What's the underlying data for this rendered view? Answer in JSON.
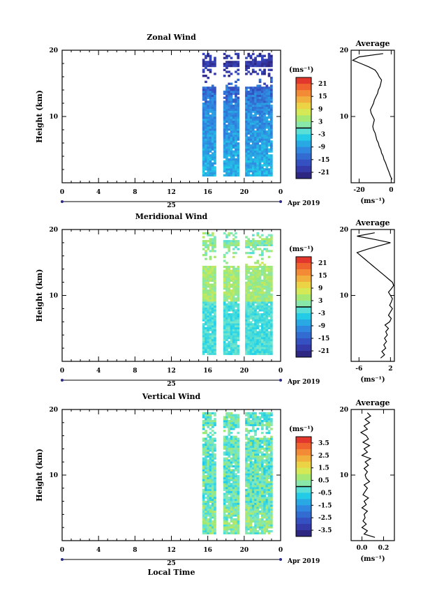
{
  "chart_data": [
    {
      "type": "heatmap",
      "title": "Zonal Wind",
      "ylabel": "Height (km)",
      "ylim": [
        0,
        20
      ],
      "yticks": [
        "10",
        "20"
      ],
      "xlim": [
        0,
        24
      ],
      "xticks": [
        "0",
        "4",
        "8",
        "12",
        "16",
        "20",
        "0"
      ],
      "date_label": "25",
      "month_label": "Apr 2019",
      "xlabel": "",
      "colorbar": {
        "unit": "(ms⁻¹)",
        "ticks": [
          "21",
          "15",
          "9",
          "3",
          "-3",
          "-9",
          "-15",
          "-21"
        ],
        "min": -24,
        "max": 24
      },
      "profile": {
        "title": "Average",
        "xticks": [
          "-20",
          "0"
        ],
        "xlabel": "(ms⁻¹)",
        "xlim": [
          -25,
          2
        ],
        "yticks": [
          "10",
          "20"
        ],
        "height_km": [
          0.5,
          1.0,
          1.5,
          2.0,
          2.5,
          3.0,
          3.5,
          4.0,
          4.5,
          5.0,
          5.5,
          6.0,
          6.5,
          7.0,
          7.5,
          8.0,
          8.5,
          9.0,
          9.5,
          10.0,
          10.5,
          11.0,
          11.5,
          12.0,
          12.5,
          13.0,
          13.5,
          14.0,
          14.5,
          15.0,
          15.5,
          16.0,
          16.5,
          17.0,
          17.5,
          18.0,
          18.5,
          19.0,
          19.5
        ],
        "value": [
          0.5,
          -0.5,
          -1.2,
          -2.0,
          -2.8,
          -3.5,
          -4.5,
          -5.0,
          -6.0,
          -6.5,
          -7.5,
          -8.0,
          -9.0,
          -9.5,
          -10.0,
          -11.0,
          -11.5,
          -11.0,
          -10.5,
          -11.5,
          -12.5,
          -13.0,
          -12.0,
          -11.0,
          -10.5,
          -9.5,
          -8.5,
          -8.0,
          -7.0,
          -6.5,
          -6.0,
          -7.5,
          -8.5,
          -10.0,
          -14.0,
          -19.0,
          -24.0,
          -20.0,
          -5.0
        ]
      }
    },
    {
      "type": "heatmap",
      "title": "Meridional Wind",
      "ylabel": "Height (km)",
      "ylim": [
        0,
        20
      ],
      "yticks": [
        "10",
        "20"
      ],
      "xlim": [
        0,
        24
      ],
      "xticks": [
        "0",
        "4",
        "8",
        "12",
        "16",
        "20",
        "0"
      ],
      "date_label": "25",
      "month_label": "Apr 2019",
      "xlabel": "",
      "colorbar": {
        "unit": "(ms⁻¹)",
        "ticks": [
          "21",
          "15",
          "9",
          "3",
          "-3",
          "-9",
          "-15",
          "-21"
        ],
        "min": -24,
        "max": 24
      },
      "profile": {
        "title": "Average",
        "xticks": [
          "-6",
          "2"
        ],
        "xlabel": "(ms⁻¹)",
        "xlim": [
          -8,
          3
        ],
        "yticks": [
          "10",
          "20"
        ],
        "height_km": [
          0.5,
          1.0,
          1.5,
          2.0,
          2.5,
          3.0,
          3.5,
          4.0,
          4.5,
          5.0,
          5.5,
          6.0,
          6.5,
          7.0,
          7.5,
          8.0,
          8.5,
          9.0,
          9.5,
          10.0,
          10.5,
          11.0,
          11.5,
          12.0,
          12.5,
          13.0,
          13.5,
          14.0,
          14.5,
          15.0,
          15.5,
          16.0,
          16.5,
          17.0,
          17.5,
          18.0,
          18.5,
          19.0,
          19.5
        ],
        "value": [
          -0.5,
          0.5,
          -0.2,
          0.8,
          0.3,
          1.0,
          0.5,
          1.2,
          0.8,
          1.5,
          0.6,
          1.8,
          2.2,
          1.5,
          2.0,
          2.5,
          1.8,
          2.2,
          2.5,
          2.0,
          1.5,
          2.2,
          2.8,
          2.5,
          1.5,
          0.5,
          -0.5,
          -1.5,
          -2.5,
          -3.5,
          -4.5,
          -5.5,
          -6.5,
          -4.0,
          -1.0,
          2.0,
          -2.0,
          -6.5,
          -2.0
        ]
      }
    },
    {
      "type": "heatmap",
      "title": "Vertical Wind",
      "ylabel": "Height (km)",
      "ylim": [
        0,
        20
      ],
      "yticks": [
        "10",
        "20"
      ],
      "xlim": [
        0,
        24
      ],
      "xticks": [
        "0",
        "4",
        "8",
        "12",
        "16",
        "20",
        "0"
      ],
      "date_label": "25",
      "month_label": "Apr 2019",
      "xlabel": "Local Time",
      "colorbar": {
        "unit": "(ms⁻¹)",
        "ticks": [
          "3.5",
          "2.5",
          "1.5",
          "0.5",
          "-0.5",
          "-1.5",
          "-2.5",
          "-3.5"
        ],
        "min": -4,
        "max": 4
      },
      "profile": {
        "title": "Average",
        "xticks": [
          "0.0",
          "0.2"
        ],
        "xlabel": "(ms⁻¹)",
        "xlim": [
          -0.1,
          0.3
        ],
        "yticks": [
          "10",
          "20"
        ],
        "height_km": [
          0.5,
          1.0,
          1.5,
          2.0,
          2.5,
          3.0,
          3.5,
          4.0,
          4.5,
          5.0,
          5.5,
          6.0,
          6.5,
          7.0,
          7.5,
          8.0,
          8.5,
          9.0,
          9.5,
          10.0,
          10.5,
          11.0,
          11.5,
          12.0,
          12.5,
          13.0,
          13.5,
          14.0,
          14.5,
          15.0,
          15.5,
          16.0,
          16.5,
          17.0,
          17.5,
          18.0,
          18.5,
          19.0,
          19.5
        ],
        "value": [
          0.12,
          0.02,
          0.05,
          0.0,
          0.04,
          0.01,
          0.03,
          0.02,
          0.05,
          0.0,
          0.04,
          0.02,
          0.06,
          0.01,
          0.03,
          0.05,
          0.02,
          0.07,
          0.04,
          0.03,
          0.05,
          0.02,
          0.06,
          0.03,
          0.08,
          0.0,
          0.05,
          0.02,
          0.07,
          0.01,
          0.06,
          0.04,
          -0.01,
          0.05,
          0.02,
          0.07,
          0.03,
          0.08,
          0.05
        ]
      }
    }
  ]
}
